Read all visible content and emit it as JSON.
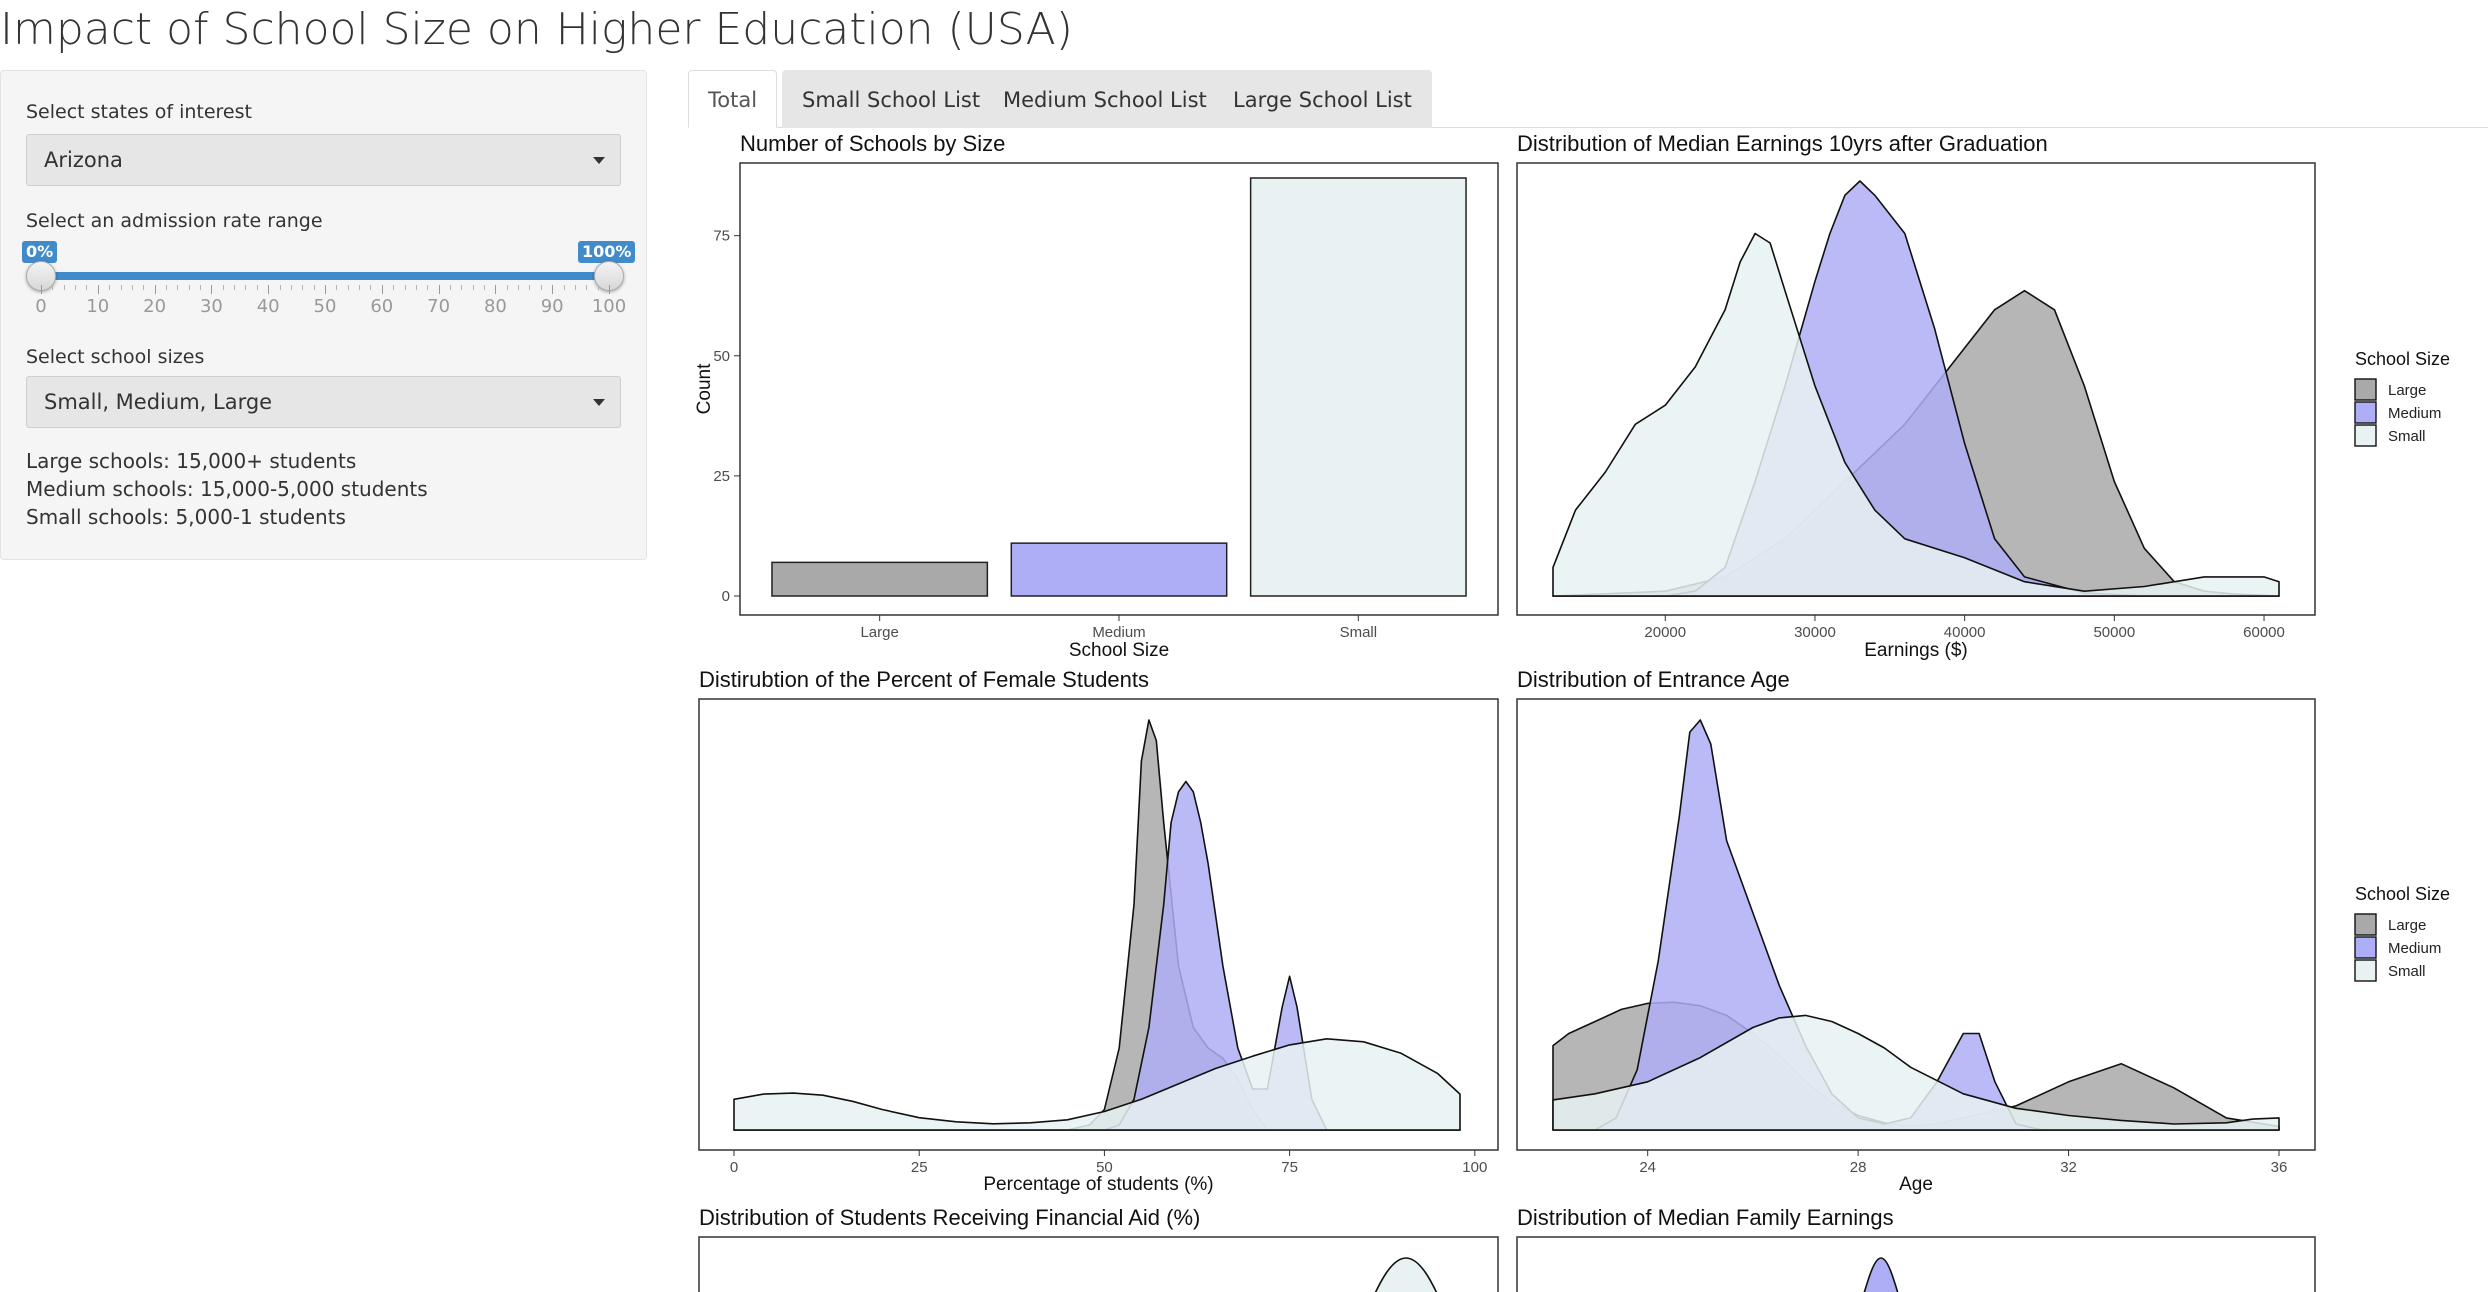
{
  "app": {
    "title": "Impact of School Size on Higher Education (USA)"
  },
  "sidebar": {
    "state_label": "Select states of interest",
    "state_value": "Arizona",
    "admission_label": "Select an admission rate range",
    "admission_min_label": "0%",
    "admission_max_label": "100%",
    "admission_range": [
      0,
      100
    ],
    "slider_ticks": [
      "0",
      "10",
      "20",
      "30",
      "40",
      "50",
      "60",
      "70",
      "80",
      "90",
      "100"
    ],
    "size_label": "Select school sizes",
    "size_value": "Small, Medium, Large",
    "size_notes": [
      "Large schools: 15,000+ students",
      "Medium schools: 15,000-5,000 students",
      "Small schools: 5,000-1 students"
    ]
  },
  "tabs": [
    {
      "label": "Total",
      "active": true
    },
    {
      "label": "Small School List",
      "active": false
    },
    {
      "label": "Medium School List",
      "active": false
    },
    {
      "label": "Large School List",
      "active": false
    }
  ],
  "colors": {
    "large": "#a9a9a9",
    "medium": "#aeaef6",
    "small": "#e8f2f2",
    "accent": "#428bca"
  },
  "legend": {
    "title": "School Size",
    "items": [
      "Large",
      "Medium",
      "Small"
    ]
  },
  "chart_data": [
    {
      "id": "schools-by-size",
      "type": "bar",
      "title": "Number of Schools by Size",
      "xlabel": "School Size",
      "ylabel": "Count",
      "categories": [
        "Large",
        "Medium",
        "Small"
      ],
      "values": [
        7,
        11,
        87
      ],
      "ylim": [
        0,
        87
      ],
      "yticks": [
        0,
        25,
        50,
        75
      ],
      "grid": false
    },
    {
      "id": "median-earnings",
      "type": "area",
      "title": "Distribution of Median Earnings 10yrs after Graduation",
      "xlabel": "Earnings ($)",
      "xlim": [
        12500,
        61000
      ],
      "xticks": [
        20000,
        30000,
        40000,
        50000,
        60000
      ],
      "legend": "right",
      "series": [
        {
          "name": "Large",
          "x": [
            12500,
            20000,
            24000,
            28000,
            32000,
            36000,
            40000,
            42000,
            44000,
            46000,
            48000,
            50000,
            52000,
            54000,
            56000,
            58000,
            61000
          ],
          "y": [
            0,
            0.5,
            2,
            6,
            12,
            18,
            26,
            30,
            32,
            30,
            22,
            12,
            5,
            1.5,
            0.5,
            0.2,
            0
          ]
        },
        {
          "name": "Medium",
          "x": [
            12500,
            20000,
            22000,
            24000,
            26000,
            28000,
            30000,
            31000,
            32000,
            33000,
            34000,
            36000,
            38000,
            40000,
            42000,
            44000,
            48000,
            52000,
            61000
          ],
          "y": [
            0,
            0,
            0.5,
            3,
            12,
            22,
            33,
            38,
            42,
            43.5,
            42,
            38,
            28,
            16,
            6,
            2,
            0.3,
            0,
            0
          ]
        },
        {
          "name": "Small",
          "x": [
            12500,
            14000,
            16000,
            18000,
            20000,
            22000,
            24000,
            25000,
            26000,
            27000,
            28000,
            30000,
            32000,
            34000,
            36000,
            40000,
            44000,
            48000,
            52000,
            56000,
            60000,
            61000
          ],
          "y": [
            3,
            9,
            13,
            18,
            20,
            24,
            30,
            35,
            38,
            37,
            32,
            22,
            14,
            9,
            6,
            4,
            1.5,
            0.5,
            1,
            2,
            2,
            1.5
          ]
        }
      ]
    },
    {
      "id": "female-students",
      "type": "area",
      "title": "Distirubtion of the Percent of Female Students",
      "xlabel": "Percentage of students (%)",
      "xlim": [
        0,
        98
      ],
      "xticks": [
        0,
        25,
        50,
        75,
        100
      ],
      "series": [
        {
          "name": "Large",
          "x": [
            0,
            45,
            48,
            50,
            52,
            54,
            55,
            56,
            57,
            58,
            60,
            62,
            64,
            66,
            68,
            70,
            72,
            80,
            98
          ],
          "y": [
            0,
            0,
            0.5,
            2,
            8,
            22,
            36,
            40,
            38,
            30,
            16,
            10,
            8,
            7,
            5,
            2,
            0,
            0,
            0
          ]
        },
        {
          "name": "Medium",
          "x": [
            0,
            50,
            52,
            54,
            56,
            58,
            59,
            60,
            61,
            62,
            63,
            64,
            66,
            68,
            70,
            72,
            74,
            75,
            76,
            78,
            80,
            98
          ],
          "y": [
            0,
            0,
            0.5,
            3,
            10,
            22,
            30,
            33,
            34,
            33,
            30,
            26,
            16,
            8,
            4,
            4,
            12,
            15,
            12,
            3,
            0,
            0
          ]
        },
        {
          "name": "Small",
          "x": [
            0,
            4,
            8,
            12,
            16,
            20,
            25,
            30,
            35,
            40,
            45,
            50,
            55,
            60,
            65,
            70,
            75,
            80,
            85,
            90,
            95,
            98
          ],
          "y": [
            3,
            3.5,
            3.6,
            3.4,
            2.8,
            2,
            1.2,
            0.8,
            0.6,
            0.7,
            1,
            1.8,
            3,
            4.5,
            6,
            7.2,
            8.3,
            8.9,
            8.6,
            7.5,
            5.5,
            3.5
          ]
        }
      ]
    },
    {
      "id": "entrance-age",
      "type": "area",
      "title": "Distribution of Entrance Age",
      "xlabel": "Age",
      "xlim": [
        22.2,
        36
      ],
      "xticks": [
        24,
        28,
        32,
        36
      ],
      "legend": "right",
      "series": [
        {
          "name": "Large",
          "x": [
            22.2,
            22.5,
            23,
            23.5,
            24,
            24.5,
            25,
            25.5,
            26,
            26.5,
            27,
            27.5,
            28,
            28.5,
            29,
            29.5,
            30,
            31,
            32,
            33,
            34,
            35,
            36
          ],
          "y": [
            7,
            8,
            9,
            10,
            10.5,
            10.6,
            10.3,
            9.5,
            8,
            6.2,
            4,
            2.3,
            1.2,
            0.6,
            0.3,
            0.5,
            1,
            2,
            4,
            5.5,
            3.5,
            1,
            0.3
          ]
        },
        {
          "name": "Medium",
          "x": [
            22.2,
            23,
            23.4,
            23.8,
            24.2,
            24.6,
            24.8,
            25,
            25.2,
            25.5,
            26,
            26.5,
            27,
            27.5,
            28,
            28.5,
            29,
            29.5,
            30,
            30.3,
            30.6,
            31,
            31.5,
            36
          ],
          "y": [
            0,
            0,
            1,
            5,
            14,
            26,
            33,
            34,
            32,
            24,
            18,
            12,
            7,
            3,
            1,
            0.5,
            1,
            4,
            8,
            8,
            4,
            0.5,
            0,
            0
          ]
        },
        {
          "name": "Small",
          "x": [
            22.2,
            23,
            24,
            25,
            26,
            26.5,
            27,
            27.5,
            28,
            28.5,
            29,
            30,
            31,
            32,
            33,
            34,
            35,
            35.5,
            36
          ],
          "y": [
            2.5,
            3,
            4,
            6,
            8.5,
            9.3,
            9.5,
            9,
            8,
            6.8,
            5.2,
            3,
            1.8,
            1.2,
            0.8,
            0.5,
            0.6,
            0.9,
            1
          ]
        }
      ]
    },
    {
      "id": "financial-aid",
      "type": "area",
      "title": "Distribution of Students Receiving Financial Aid (%)"
    },
    {
      "id": "family-earnings",
      "type": "area",
      "title": "Distribution of Median Family Earnings"
    }
  ]
}
